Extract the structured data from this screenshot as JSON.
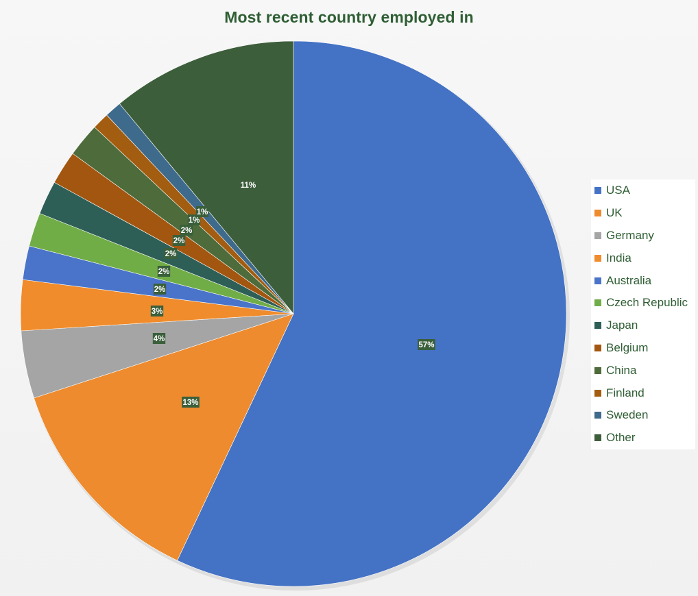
{
  "chart_data": {
    "type": "pie",
    "title": "Most recent country employed in",
    "categories": [
      "USA",
      "UK",
      "Germany",
      "India",
      "Australia",
      "Czech Republic",
      "Japan",
      "Belgium",
      "China",
      "Finland",
      "Sweden",
      "Other"
    ],
    "values": [
      57,
      13,
      4,
      3,
      2,
      2,
      2,
      2,
      2,
      1,
      1,
      11
    ],
    "data_labels": [
      "57%",
      "13%",
      "4%",
      "3%",
      "2%",
      "2%",
      "2%",
      "2%",
      "2%",
      "1%",
      "1%",
      "11%"
    ],
    "colors": [
      "#4472c4",
      "#ed8b2e",
      "#a5a5a5",
      "#f08c2c",
      "#4a74c9",
      "#71ad47",
      "#2d5f57",
      "#a3560f",
      "#4d6b3b",
      "#a35d10",
      "#3e6a8c",
      "#3d5e3b"
    ],
    "start_angle_deg": 0,
    "direction": "clockwise",
    "legend_position": "right"
  }
}
